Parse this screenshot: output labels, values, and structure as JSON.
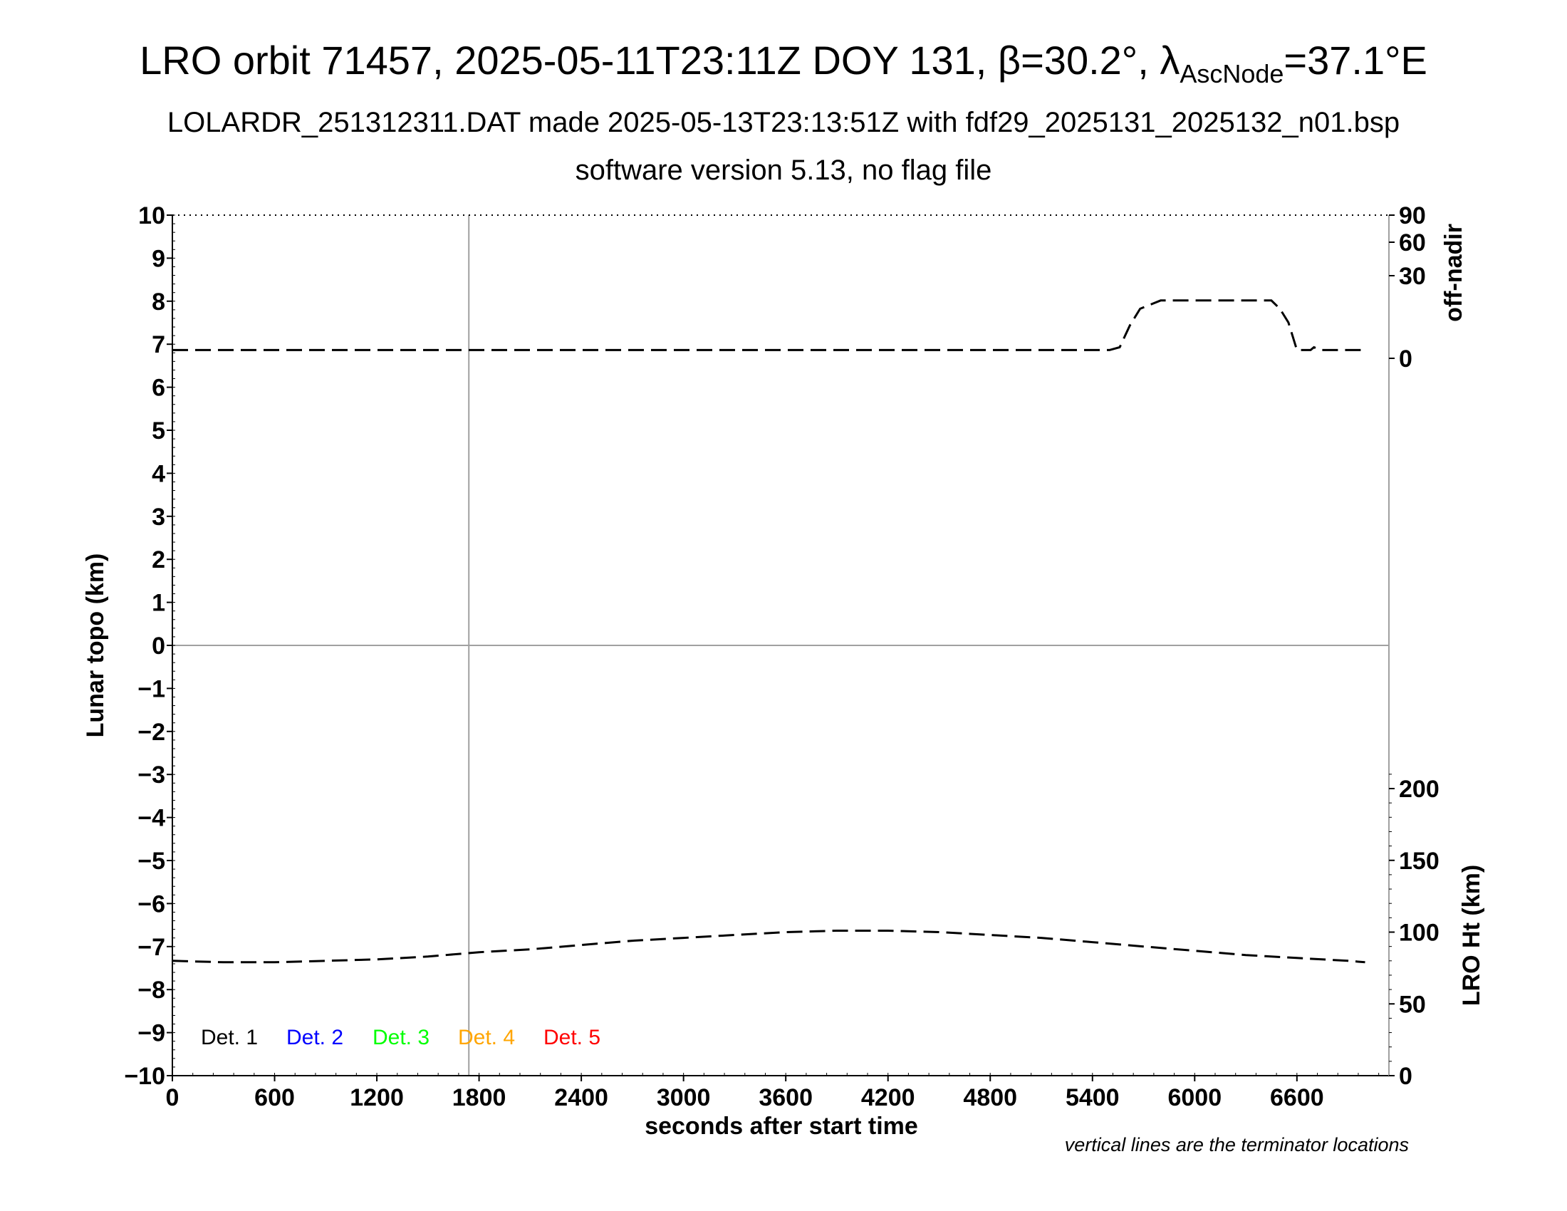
{
  "header": {
    "title_prefix": "LRO orbit 71457, 2025-05-11T23:11Z DOY 131, β=30.2°, λ",
    "title_sub": "AscNode",
    "title_suffix": "=37.1°E",
    "subtitle1": "LOLARDR_251312311.DAT made 2025-05-13T23:13:51Z with fdf29_2025131_2025132_n01.bsp",
    "subtitle2": "software version 5.13, no flag file"
  },
  "footnote": "vertical lines are the terminator locations",
  "chart_data": {
    "type": "line",
    "xlabel": "seconds after start time",
    "ylabel": "Lunar topo (km)",
    "y2label_top": "off-nadir",
    "y2label_bottom": "LRO Ht (km)",
    "xlim": [
      0,
      7140
    ],
    "ylim": [
      -10,
      10
    ],
    "x_ticks": [
      0,
      600,
      1200,
      1800,
      2400,
      3000,
      3600,
      4200,
      4800,
      5400,
      6000,
      6600
    ],
    "y_ticks": [
      -10,
      -9,
      -8,
      -7,
      -6,
      -5,
      -4,
      -3,
      -2,
      -1,
      0,
      1,
      2,
      3,
      4,
      5,
      6,
      7,
      8,
      9,
      10
    ],
    "y2_offnadir_ticks": [
      0,
      30,
      60,
      90
    ],
    "y2_height_ticks": [
      0,
      50,
      100,
      150,
      200
    ],
    "terminator_x": [
      1740
    ],
    "zero_line_y": 0,
    "legend": [
      {
        "label": "Det. 1",
        "color": "#000000"
      },
      {
        "label": "Det. 2",
        "color": "#0000ff"
      },
      {
        "label": "Det. 3",
        "color": "#00ff00"
      },
      {
        "label": "Det. 4",
        "color": "#ffa500"
      },
      {
        "label": "Det. 5",
        "color": "#ff0000"
      }
    ],
    "series": [
      {
        "axis": "off-nadir (deg)",
        "style": "dashed",
        "x": [
          0,
          600,
          1200,
          1800,
          2400,
          3000,
          3600,
          4200,
          4800,
          5400,
          5500,
          5560,
          5620,
          5680,
          5800,
          6000,
          6200,
          6400,
          6450,
          6500,
          6550,
          6600,
          6640,
          6680,
          6700,
          6740,
          6800,
          6900,
          7000
        ],
        "y": [
          3,
          3,
          3,
          3,
          3,
          3,
          3,
          3,
          3,
          3,
          3,
          4,
          12,
          18,
          21,
          21,
          21,
          21,
          21,
          18,
          13,
          3,
          3,
          3,
          4,
          3,
          3,
          3,
          3
        ]
      },
      {
        "axis": "LRO Ht (km)",
        "style": "dashed",
        "x": [
          0,
          300,
          600,
          900,
          1200,
          1500,
          1800,
          2100,
          2400,
          2700,
          3000,
          3300,
          3600,
          3900,
          4200,
          4500,
          4800,
          5100,
          5400,
          5700,
          6000,
          6300,
          6600,
          6900,
          7000
        ],
        "y": [
          80,
          79,
          79,
          80,
          81,
          83,
          86,
          88,
          91,
          94,
          96,
          98,
          100,
          101,
          101,
          100,
          98,
          96,
          93,
          90,
          87,
          84,
          82,
          80,
          79
        ]
      }
    ]
  }
}
